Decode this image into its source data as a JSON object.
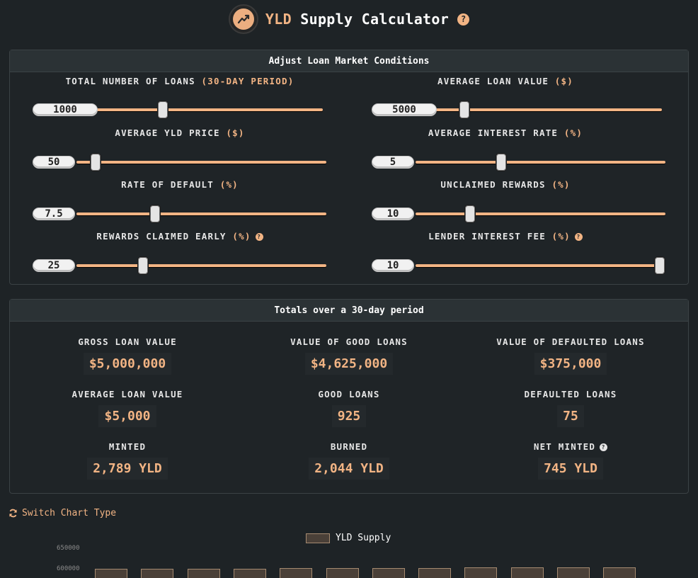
{
  "header": {
    "title_accent": "YLD",
    "title_rest": "Supply Calculator",
    "help_glyph": "?",
    "logo_icon": "chart-line-icon",
    "accent_color": "#f2b484"
  },
  "conditions": {
    "heading": "Adjust Loan Market Conditions",
    "sliders": [
      {
        "label": "TOTAL NUMBER OF LOANS",
        "unit": "(30-DAY PERIOD)",
        "value": "1000",
        "fraction": 0.27,
        "help": false
      },
      {
        "label": "AVERAGE LOAN VALUE",
        "unit": "($)",
        "value": "5000",
        "fraction": 0.09,
        "help": false
      },
      {
        "label": "AVERAGE YLD PRICE",
        "unit": "($)",
        "value": "50",
        "fraction": 0.05,
        "help": false
      },
      {
        "label": "AVERAGE INTEREST RATE",
        "unit": "(%)",
        "value": "5",
        "fraction": 0.33,
        "help": false
      },
      {
        "label": "RATE OF DEFAULT",
        "unit": "(%)",
        "value": "7.5",
        "fraction": 0.3,
        "help": false
      },
      {
        "label": "UNCLAIMED REWARDS",
        "unit": "(%)",
        "value": "10",
        "fraction": 0.2,
        "help": false
      },
      {
        "label": "REWARDS CLAIMED EARLY",
        "unit": "(%)",
        "value": "25",
        "fraction": 0.25,
        "help": true
      },
      {
        "label": "LENDER INTEREST FEE",
        "unit": "(%)",
        "value": "10",
        "fraction": 1.0,
        "help": true
      }
    ]
  },
  "totals": {
    "heading": "Totals over a 30-day period",
    "stats": [
      {
        "label": "GROSS LOAN VALUE",
        "value": "$5,000,000"
      },
      {
        "label": "VALUE OF GOOD LOANS",
        "value": "$4,625,000"
      },
      {
        "label": "VALUE OF DEFAULTED LOANS",
        "value": "$375,000"
      },
      {
        "label": "AVERAGE LOAN VALUE",
        "value": "$5,000"
      },
      {
        "label": "GOOD LOANS",
        "value": "925"
      },
      {
        "label": "DEFAULTED LOANS",
        "value": "75"
      },
      {
        "label": "MINTED",
        "value": "2,789 YLD"
      },
      {
        "label": "BURNED",
        "value": "2,044 YLD"
      },
      {
        "label": "NET MINTED",
        "value": "745 YLD"
      }
    ]
  },
  "chart_controls": {
    "switch_label": "Switch Chart Type",
    "switch_icon": "refresh-icon"
  },
  "chart_data": {
    "type": "bar",
    "series": [
      {
        "name": "YLD Supply",
        "values": [
          602000,
          602000,
          602500,
          602500,
          603000,
          603000,
          603500,
          604000,
          604500,
          605000,
          605500,
          606000
        ]
      }
    ],
    "yticks": [
      "650000",
      "600000"
    ],
    "ylim": [
      600000,
      650000
    ],
    "legend": "top-center"
  }
}
